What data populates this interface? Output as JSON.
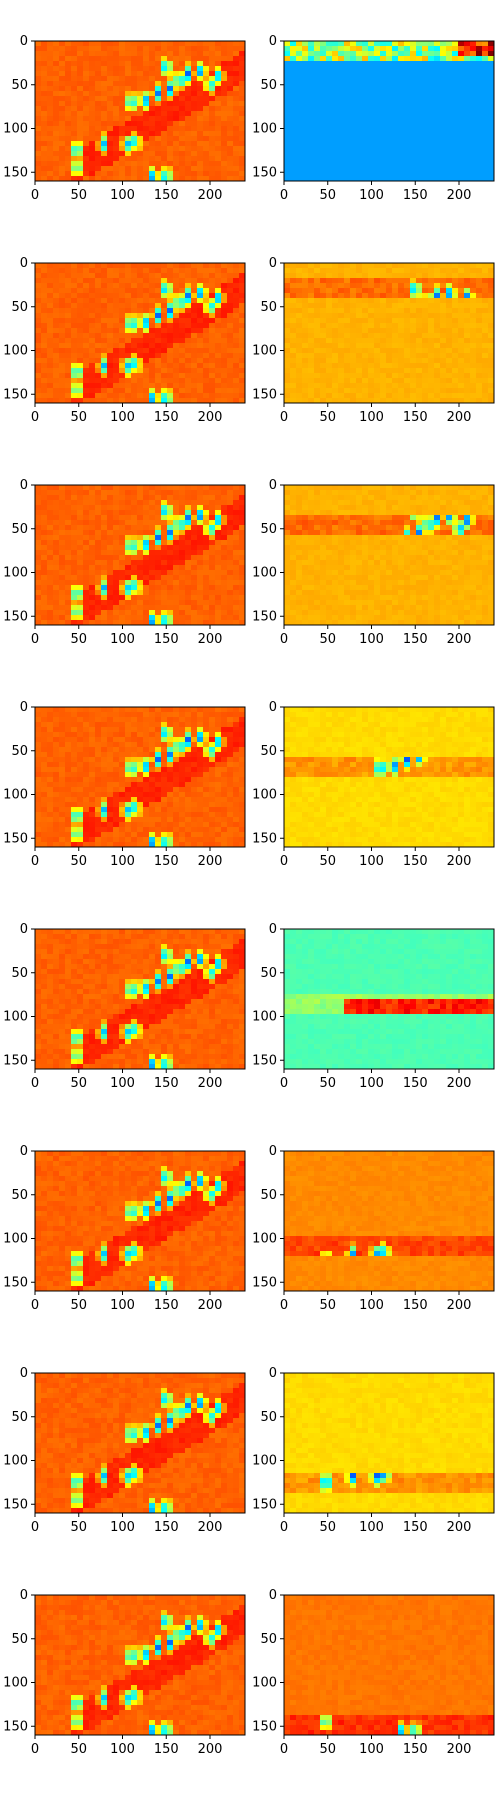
{
  "chart_data": {
    "type": "heatmap",
    "layout": "8 rows x 2 columns of heatmap panels",
    "colormap": "jet",
    "xlim": [
      0,
      240
    ],
    "ylim": [
      160,
      0
    ],
    "xticks": [
      0,
      50,
      100,
      150,
      200
    ],
    "yticks": [
      0,
      50,
      100,
      150
    ],
    "title": "",
    "xlabel": "",
    "ylabel": "",
    "grid": false,
    "left_column": {
      "background_level": 0.78,
      "streak": "diagonal band from bottom-left (x≈40,y≈150) to top-right (x≈220,y≈40)",
      "blobs": [
        {
          "x": 48,
          "y": 125
        },
        {
          "x": 48,
          "y": 145
        },
        {
          "x": 78,
          "y": 118
        },
        {
          "x": 105,
          "y": 118
        },
        {
          "x": 115,
          "y": 115
        },
        {
          "x": 110,
          "y": 70
        },
        {
          "x": 125,
          "y": 68
        },
        {
          "x": 140,
          "y": 60
        },
        {
          "x": 155,
          "y": 55
        },
        {
          "x": 165,
          "y": 45
        },
        {
          "x": 175,
          "y": 38
        },
        {
          "x": 190,
          "y": 35
        },
        {
          "x": 200,
          "y": 50
        },
        {
          "x": 210,
          "y": 40
        },
        {
          "x": 150,
          "y": 30
        },
        {
          "x": 135,
          "y": 155
        },
        {
          "x": 150,
          "y": 155
        }
      ]
    },
    "right_column_bands": [
      {
        "row": 1,
        "band_y": 12,
        "background_level": 0.28,
        "description": "noisy strip near top, rest uniform blue"
      },
      {
        "row": 2,
        "band_y": 30,
        "background_level": 0.7,
        "description": "blobs near x 150-200"
      },
      {
        "row": 3,
        "band_y": 45,
        "background_level": 0.7,
        "description": "blobs near x 125-215"
      },
      {
        "row": 4,
        "band_y": 68,
        "background_level": 0.66,
        "description": "blobs near x 110-215"
      },
      {
        "row": 5,
        "band_y": 88,
        "background_level": 0.45,
        "description": "red streak on cyan background"
      },
      {
        "row": 6,
        "band_y": 110,
        "background_level": 0.74,
        "description": "blobs near x 40-130"
      },
      {
        "row": 7,
        "band_y": 125,
        "background_level": 0.66,
        "description": "blobs near x 40-125"
      },
      {
        "row": 8,
        "band_y": 150,
        "background_level": 0.76,
        "description": "blobs near x 45 and 135-155"
      }
    ]
  }
}
